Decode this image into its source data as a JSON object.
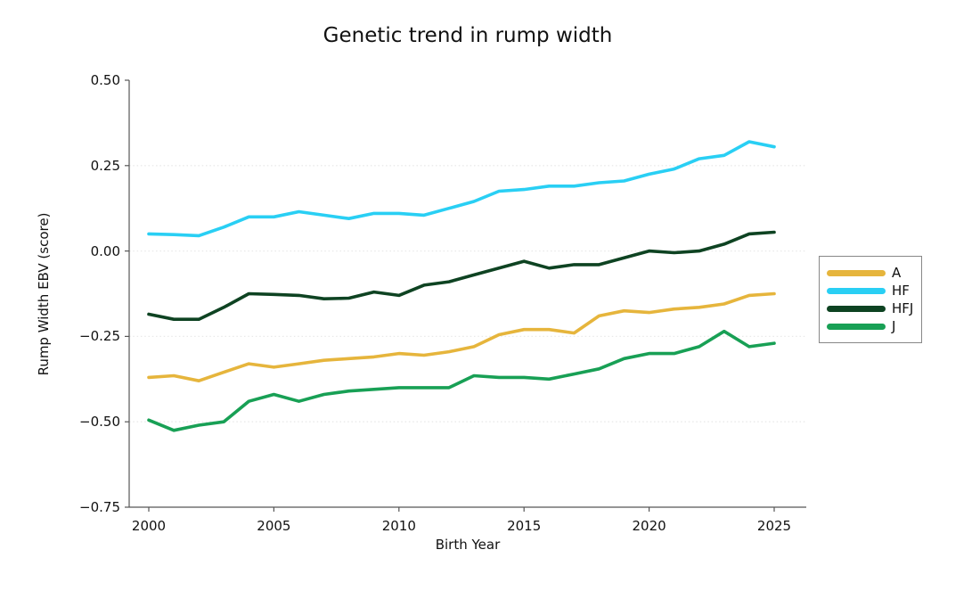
{
  "title": "Genetic trend in rump width",
  "colors": {
    "background": "#ffffff",
    "axis": "#565656",
    "grid": "#e9e9e9",
    "text": "#111111",
    "legend_border": "#888888"
  },
  "chart_data": {
    "type": "line",
    "title": "Genetic trend in rump width",
    "xlabel": "Birth Year",
    "ylabel": "Rump Width EBV (score)",
    "xlim": [
      2000,
      2025
    ],
    "ylim": [
      -0.75,
      0.5
    ],
    "xtick_values": [
      2000,
      2005,
      2010,
      2015,
      2020,
      2025
    ],
    "xtick_labels": [
      "2000",
      "2005",
      "2010",
      "2015",
      "2020",
      "2025"
    ],
    "ytick_values": [
      0.5,
      0.25,
      0.0,
      -0.25,
      -0.5,
      -0.75
    ],
    "ytick_labels": [
      "0.50",
      "0.25",
      "0.00",
      "−0.25",
      "−0.50",
      "−0.75"
    ],
    "grid": "horizontal-dotted",
    "legend_position": "right",
    "x": [
      2000,
      2001,
      2002,
      2003,
      2004,
      2005,
      2006,
      2007,
      2008,
      2009,
      2010,
      2011,
      2012,
      2013,
      2014,
      2015,
      2016,
      2017,
      2018,
      2019,
      2020,
      2021,
      2022,
      2023,
      2024,
      2025
    ],
    "series": [
      {
        "name": "A",
        "color": "#E6B53C",
        "values": [
          -0.37,
          -0.365,
          -0.38,
          -0.355,
          -0.33,
          -0.34,
          -0.33,
          -0.32,
          -0.315,
          -0.31,
          -0.3,
          -0.305,
          -0.295,
          -0.28,
          -0.245,
          -0.23,
          -0.23,
          -0.24,
          -0.19,
          -0.175,
          -0.18,
          -0.17,
          -0.165,
          -0.155,
          -0.13,
          -0.125
        ]
      },
      {
        "name": "HF",
        "color": "#29CFF4",
        "values": [
          0.05,
          0.048,
          0.045,
          0.07,
          0.1,
          0.1,
          0.115,
          0.105,
          0.095,
          0.11,
          0.11,
          0.105,
          0.125,
          0.145,
          0.175,
          0.18,
          0.19,
          0.19,
          0.2,
          0.205,
          0.225,
          0.24,
          0.27,
          0.28,
          0.32,
          0.305
        ]
      },
      {
        "name": "HFJ",
        "color": "#0E4322",
        "values": [
          -0.185,
          -0.2,
          -0.2,
          -0.165,
          -0.125,
          -0.127,
          -0.13,
          -0.14,
          -0.138,
          -0.12,
          -0.13,
          -0.1,
          -0.09,
          -0.07,
          -0.05,
          -0.03,
          -0.05,
          -0.04,
          -0.04,
          -0.02,
          0.0,
          -0.005,
          0.0,
          0.02,
          0.05,
          0.055
        ]
      },
      {
        "name": "J",
        "color": "#18A055",
        "values": [
          -0.495,
          -0.525,
          -0.51,
          -0.5,
          -0.44,
          -0.42,
          -0.44,
          -0.42,
          -0.41,
          -0.405,
          -0.4,
          -0.4,
          -0.4,
          -0.365,
          -0.37,
          -0.37,
          -0.375,
          -0.36,
          -0.345,
          -0.315,
          -0.3,
          -0.3,
          -0.28,
          -0.235,
          -0.28,
          -0.27
        ]
      }
    ]
  }
}
